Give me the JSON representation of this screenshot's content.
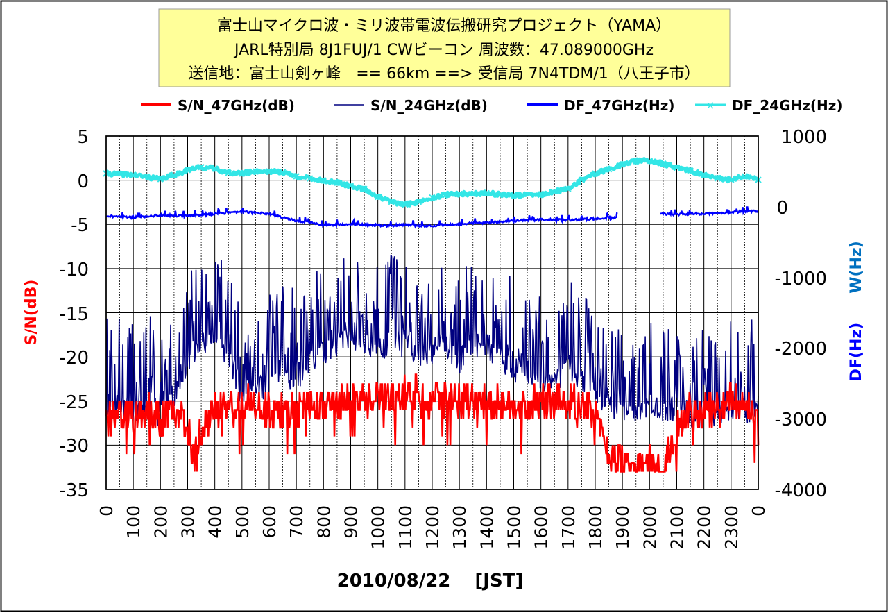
{
  "chart_data": {
    "type": "line",
    "title_lines": [
      "富士山マイクロ波・ミリ波帯電波伝搬研究プロジェクト（YAMA）",
      "JARL特別局 8J1FUJ/1 CWビーコン 周波数：47.089000GHz",
      "送信地：富士山剣ヶ峰　== 66km ==> 受信局 7N4TDM/1（八王子市）"
    ],
    "xlabel": "2010/08/22　 [JST]",
    "ylabel_left": "S/N(dB)",
    "ylabel_right_top": "W(Hz)",
    "ylabel_right_bottom": "DF(Hz)",
    "x_ticks": [
      "0",
      "100",
      "200",
      "300",
      "400",
      "500",
      "600",
      "700",
      "800",
      "900",
      "1000",
      "1100",
      "1200",
      "1300",
      "1400",
      "1500",
      "1600",
      "1700",
      "1800",
      "1900",
      "2000",
      "2100",
      "2200",
      "2300",
      "0"
    ],
    "xlim_hours": [
      0,
      24
    ],
    "ylim_left": [
      -35,
      5
    ],
    "yticks_left": [
      "5",
      "0",
      "-5",
      "-10",
      "-15",
      "-20",
      "-25",
      "-30",
      "-35"
    ],
    "ylim_right": [
      -4000,
      1000
    ],
    "yticks_right": [
      "1000",
      "0",
      "-1000",
      "-2000",
      "-3000",
      "-4000"
    ],
    "legend": [
      {
        "label": "S/N_47GHz(dB)",
        "color": "#ff0000"
      },
      {
        "label": "S/N_24GHz(dB)",
        "color": "#000080"
      },
      {
        "label": "DF_47GHz(Hz)",
        "color": "#0000ff"
      },
      {
        "label": "DF_24GHz(Hz)",
        "color": "#33e6e6"
      }
    ],
    "title_bg": "#ffff99",
    "series": [
      {
        "name": "S/N_47GHz(dB)",
        "axis": "left",
        "color": "#ff0000",
        "x": [
          0,
          0.5,
          1,
          1.5,
          2,
          2.5,
          3,
          3.25,
          3.5,
          3.75,
          4,
          5,
          6,
          7,
          8,
          9,
          10,
          11,
          12,
          13,
          14,
          15,
          16,
          17,
          17.8,
          18.3,
          18.5,
          19,
          19.5,
          20,
          20.5,
          21,
          21.5,
          22,
          22.5,
          23,
          23.5,
          24
        ],
        "y": [
          -26,
          -26,
          -27,
          -26,
          -27,
          -26,
          -28,
          -31,
          -28,
          -27,
          -26,
          -25,
          -26,
          -26,
          -25,
          -25,
          -25,
          -24,
          -25,
          -25,
          -25,
          -26,
          -25,
          -25,
          -26,
          -28,
          -32,
          -32,
          -33,
          -32,
          -33,
          -28,
          -26,
          -26,
          -26,
          -25,
          -25,
          -26
        ]
      },
      {
        "name": "S/N_24GHz(dB)",
        "axis": "left",
        "color": "#000080",
        "x": [
          0,
          0.5,
          1,
          1.5,
          2,
          2.3,
          3,
          3.5,
          4,
          4.5,
          5,
          5.5,
          6,
          6.5,
          7,
          7.5,
          8,
          8.5,
          9,
          9.5,
          10,
          10.5,
          11,
          11.5,
          12,
          12.5,
          13,
          13.5,
          14,
          14.5,
          15,
          15.5,
          16,
          16.5,
          17,
          17.5,
          18,
          18.5,
          19,
          19.5,
          20,
          20.5,
          21,
          21.5,
          22,
          22.5,
          23,
          23.5,
          24
        ],
        "y": [
          -24,
          -24,
          -25,
          -24,
          -25,
          -24,
          -19,
          -17,
          -17,
          -18,
          -23,
          -22,
          -22,
          -21,
          -21,
          -19,
          -18,
          -17,
          -16,
          -17,
          -18,
          -17,
          -17,
          -18,
          -18,
          -17,
          -19,
          -17,
          -17,
          -19,
          -20,
          -20,
          -21,
          -21,
          -20,
          -21,
          -23,
          -24,
          -25,
          -25,
          -24,
          -25,
          -24,
          -25,
          -25,
          -25,
          -24,
          -25,
          -24
        ]
      },
      {
        "name": "DF_47GHz(Hz)",
        "axis": "right",
        "color": "#0000ff",
        "x": [
          0,
          1,
          2,
          3,
          4,
          5,
          6,
          6.5,
          7,
          7.5,
          8,
          9,
          10,
          10.5,
          11,
          11.5,
          12,
          12.5,
          13,
          13.5,
          14,
          15,
          16,
          17,
          18,
          18.8
        ],
        "y": [
          -130,
          -150,
          -120,
          -130,
          -100,
          -70,
          -100,
          -150,
          -200,
          -220,
          -260,
          -250,
          -260,
          -270,
          -250,
          -270,
          -270,
          -250,
          -250,
          -230,
          -230,
          -200,
          -180,
          -190,
          -170,
          -150
        ],
        "x2": [
          20.4,
          21,
          21.5,
          22,
          22.5,
          23,
          23.5,
          24
        ],
        "y2": [
          -100,
          -110,
          -100,
          -100,
          -90,
          -80,
          -70,
          -60
        ]
      },
      {
        "name": "DF_24GHz(Hz)",
        "axis": "right",
        "color": "#33e6e6",
        "x": [
          0,
          1,
          2,
          2.5,
          3,
          3.5,
          4,
          4.5,
          5,
          5.5,
          6,
          6.5,
          7,
          7.5,
          8,
          8.5,
          9,
          9.5,
          10,
          10.5,
          11,
          11.5,
          12,
          12.5,
          13,
          14,
          15,
          16,
          17,
          17.5,
          18,
          18.5,
          19,
          19.5,
          20,
          20.5,
          21,
          21.5,
          22,
          22.5,
          23,
          23.5,
          24
        ],
        "y": [
          470,
          450,
          390,
          450,
          520,
          560,
          540,
          480,
          470,
          500,
          500,
          490,
          430,
          400,
          370,
          340,
          290,
          250,
          140,
          70,
          30,
          70,
          130,
          170,
          180,
          190,
          160,
          170,
          250,
          380,
          470,
          530,
          600,
          650,
          650,
          610,
          550,
          510,
          450,
          400,
          380,
          430,
          380
        ]
      }
    ]
  }
}
